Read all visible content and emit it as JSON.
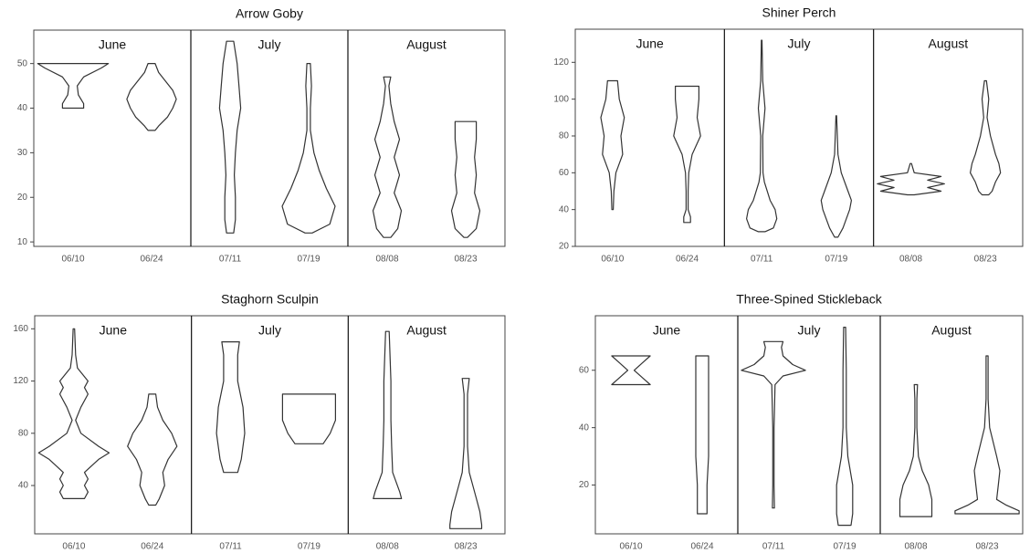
{
  "chart_data": [
    {
      "type": "violin",
      "title": "Arrow Goby",
      "categories": [
        "06/10",
        "06/24",
        "07/11",
        "07/19",
        "08/08",
        "08/23"
      ],
      "groups": [
        {
          "name": "June",
          "size": 2
        },
        {
          "name": "July",
          "size": 2
        },
        {
          "name": "August",
          "size": 2
        }
      ],
      "ylim": [
        9,
        57.5
      ],
      "yticks": [
        10,
        20,
        30,
        40,
        50
      ],
      "color": "#333333",
      "violins": [
        {
          "y": [
            40,
            41,
            43,
            45,
            47,
            49,
            50
          ],
          "density": [
            0.3,
            0.3,
            0.15,
            0.12,
            0.3,
            0.8,
            1.0
          ]
        },
        {
          "y": [
            35,
            36,
            38,
            40,
            42,
            44,
            46,
            48,
            50
          ],
          "density": [
            0.1,
            0.2,
            0.45,
            0.6,
            0.7,
            0.6,
            0.4,
            0.2,
            0.1
          ]
        },
        {
          "y": [
            12,
            15,
            20,
            25,
            30,
            35,
            40,
            45,
            50,
            55
          ],
          "density": [
            0.1,
            0.15,
            0.15,
            0.12,
            0.15,
            0.2,
            0.3,
            0.25,
            0.2,
            0.1
          ]
        },
        {
          "y": [
            12,
            14,
            18,
            22,
            26,
            30,
            35,
            40,
            45,
            50
          ],
          "density": [
            0.1,
            0.6,
            0.75,
            0.5,
            0.3,
            0.15,
            0.05,
            0.05,
            0.08,
            0.05
          ]
        },
        {
          "y": [
            11,
            13,
            17,
            21,
            25,
            29,
            33,
            37,
            41,
            45,
            47
          ],
          "density": [
            0.1,
            0.3,
            0.4,
            0.2,
            0.35,
            0.2,
            0.35,
            0.2,
            0.1,
            0.05,
            0.1
          ]
        },
        {
          "y": [
            11,
            13,
            17,
            21,
            25,
            29,
            33,
            37
          ],
          "density": [
            0.05,
            0.3,
            0.4,
            0.25,
            0.3,
            0.25,
            0.3,
            0.3
          ]
        }
      ]
    },
    {
      "type": "violin",
      "title": "Shiner Perch",
      "categories": [
        "06/10",
        "06/24",
        "07/11",
        "07/19",
        "08/08",
        "08/23"
      ],
      "groups": [
        {
          "name": "June",
          "size": 2
        },
        {
          "name": "July",
          "size": 2
        },
        {
          "name": "August",
          "size": 2
        }
      ],
      "ylim": [
        20,
        138
      ],
      "yticks": [
        20,
        40,
        60,
        80,
        100,
        120
      ],
      "color": "#333333",
      "violins": [
        {
          "y": [
            40,
            50,
            60,
            70,
            80,
            90,
            100,
            110
          ],
          "density": [
            0.02,
            0.04,
            0.1,
            0.3,
            0.25,
            0.35,
            0.2,
            0.15
          ]
        },
        {
          "y": [
            33,
            36,
            40,
            50,
            60,
            70,
            80,
            90,
            100,
            107
          ],
          "density": [
            0.1,
            0.1,
            0.03,
            0.03,
            0.05,
            0.15,
            0.4,
            0.3,
            0.35,
            0.35
          ]
        },
        {
          "y": [
            28,
            30,
            35,
            40,
            45,
            55,
            60,
            80,
            95,
            110,
            132
          ],
          "density": [
            0.1,
            0.35,
            0.45,
            0.4,
            0.25,
            0.08,
            0.04,
            0.03,
            0.1,
            0.03,
            0.01
          ]
        },
        {
          "y": [
            25,
            30,
            40,
            45,
            50,
            60,
            70,
            91
          ],
          "density": [
            0.05,
            0.2,
            0.4,
            0.45,
            0.35,
            0.15,
            0.05,
            0.01
          ]
        },
        {
          "y": [
            48,
            50,
            52,
            54,
            56,
            58,
            60,
            65
          ],
          "density": [
            0.1,
            0.9,
            0.5,
            1.0,
            0.5,
            0.9,
            0.1,
            0.02
          ]
        },
        {
          "y": [
            48,
            50,
            55,
            60,
            65,
            70,
            80,
            90,
            100,
            110
          ],
          "density": [
            0.1,
            0.2,
            0.3,
            0.45,
            0.4,
            0.3,
            0.15,
            0.05,
            0.1,
            0.03
          ]
        }
      ]
    },
    {
      "type": "violin",
      "title": "Staghorn Sculpin",
      "categories": [
        "06/10",
        "06/24",
        "07/11",
        "07/19",
        "08/08",
        "08/23"
      ],
      "groups": [
        {
          "name": "June",
          "size": 2
        },
        {
          "name": "July",
          "size": 2
        },
        {
          "name": "August",
          "size": 2
        }
      ],
      "ylim": [
        3,
        170
      ],
      "yticks": [
        40,
        80,
        120,
        160
      ],
      "color": "#333333",
      "violins": [
        {
          "y": [
            30,
            35,
            40,
            45,
            50,
            60,
            65,
            70,
            80,
            90,
            100,
            110,
            115,
            120,
            130,
            140,
            160
          ],
          "density": [
            0.3,
            0.4,
            0.3,
            0.4,
            0.3,
            0.7,
            1.0,
            0.7,
            0.2,
            0.05,
            0.2,
            0.4,
            0.3,
            0.4,
            0.1,
            0.05,
            0.02
          ]
        },
        {
          "y": [
            25,
            30,
            40,
            50,
            60,
            70,
            80,
            90,
            100,
            110
          ],
          "density": [
            0.1,
            0.2,
            0.35,
            0.3,
            0.45,
            0.7,
            0.55,
            0.3,
            0.15,
            0.1
          ]
        },
        {
          "y": [
            50,
            60,
            80,
            100,
            120,
            140,
            150
          ],
          "density": [
            0.2,
            0.3,
            0.4,
            0.35,
            0.2,
            0.2,
            0.25
          ]
        },
        {
          "y": [
            72,
            80,
            90,
            100,
            110
          ],
          "density": [
            0.4,
            0.6,
            0.75,
            0.75,
            0.75
          ]
        },
        {
          "y": [
            30,
            35,
            50,
            70,
            90,
            120,
            158
          ],
          "density": [
            0.4,
            0.35,
            0.15,
            0.12,
            0.1,
            0.1,
            0.05
          ]
        },
        {
          "y": [
            7,
            10,
            20,
            30,
            40,
            50,
            70,
            90,
            110,
            122
          ],
          "density": [
            0.45,
            0.45,
            0.4,
            0.3,
            0.2,
            0.1,
            0.05,
            0.05,
            0.05,
            0.1
          ]
        }
      ]
    },
    {
      "type": "violin",
      "title": "Three-Spined Stickleback",
      "categories": [
        "06/10",
        "06/24",
        "07/11",
        "07/19",
        "08/08",
        "08/23"
      ],
      "groups": [
        {
          "name": "June",
          "size": 2
        },
        {
          "name": "July",
          "size": 2
        },
        {
          "name": "August",
          "size": 2
        }
      ],
      "ylim": [
        3,
        79
      ],
      "yticks": [
        20,
        40,
        60
      ],
      "color": "#333333",
      "violins": [
        {
          "y": [
            55,
            57,
            60,
            63,
            65
          ],
          "density": [
            0.6,
            0.4,
            0.1,
            0.4,
            0.6
          ]
        },
        {
          "y": [
            10,
            20,
            30,
            40,
            50,
            65
          ],
          "density": [
            0.15,
            0.15,
            0.2,
            0.2,
            0.2,
            0.2
          ]
        },
        {
          "y": [
            12,
            20,
            40,
            55,
            58,
            60,
            62,
            65,
            68,
            70
          ],
          "density": [
            0.03,
            0.02,
            0.02,
            0.05,
            0.3,
            1.0,
            0.6,
            0.3,
            0.25,
            0.3
          ]
        },
        {
          "y": [
            6,
            10,
            20,
            30,
            40,
            60,
            75
          ],
          "density": [
            0.2,
            0.25,
            0.25,
            0.1,
            0.05,
            0.05,
            0.03
          ]
        },
        {
          "y": [
            9,
            10,
            15,
            20,
            25,
            30,
            40,
            50,
            55
          ],
          "density": [
            0.5,
            0.5,
            0.5,
            0.4,
            0.2,
            0.08,
            0.03,
            0.03,
            0.05
          ]
        },
        {
          "y": [
            10,
            11,
            13,
            15,
            20,
            25,
            30,
            40,
            50,
            65
          ],
          "density": [
            1.0,
            1.0,
            0.6,
            0.3,
            0.35,
            0.4,
            0.3,
            0.08,
            0.03,
            0.03
          ]
        }
      ]
    }
  ]
}
